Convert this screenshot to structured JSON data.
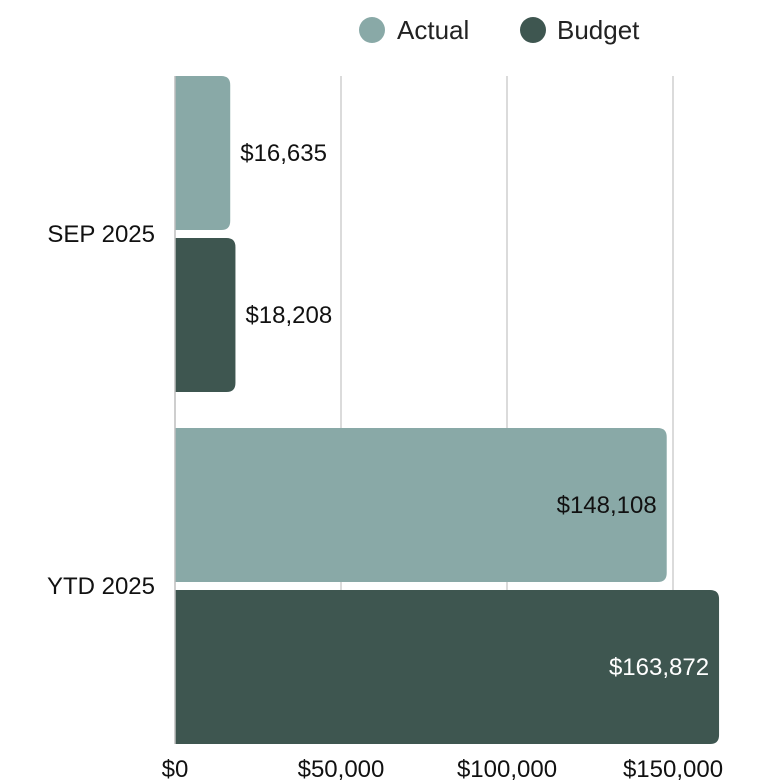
{
  "chart_data": {
    "type": "bar",
    "orientation": "horizontal",
    "categories": [
      "SEP 2025",
      "YTD 2025"
    ],
    "series": [
      {
        "name": "Actual",
        "values": [
          16635,
          148108
        ],
        "labels": [
          "$16,635",
          "$148,108"
        ],
        "color": "#89a9a7"
      },
      {
        "name": "Budget",
        "values": [
          18208,
          163872
        ],
        "labels": [
          "$18,208",
          "$163,872"
        ],
        "color": "#3e5650"
      }
    ],
    "xlim": [
      0,
      150000
    ],
    "xticks": [
      0,
      50000,
      100000,
      150000
    ],
    "xtick_labels": [
      "$0",
      "$50,000",
      "$100,000",
      "$150,000"
    ],
    "grid": "vertical",
    "legend": "top"
  }
}
